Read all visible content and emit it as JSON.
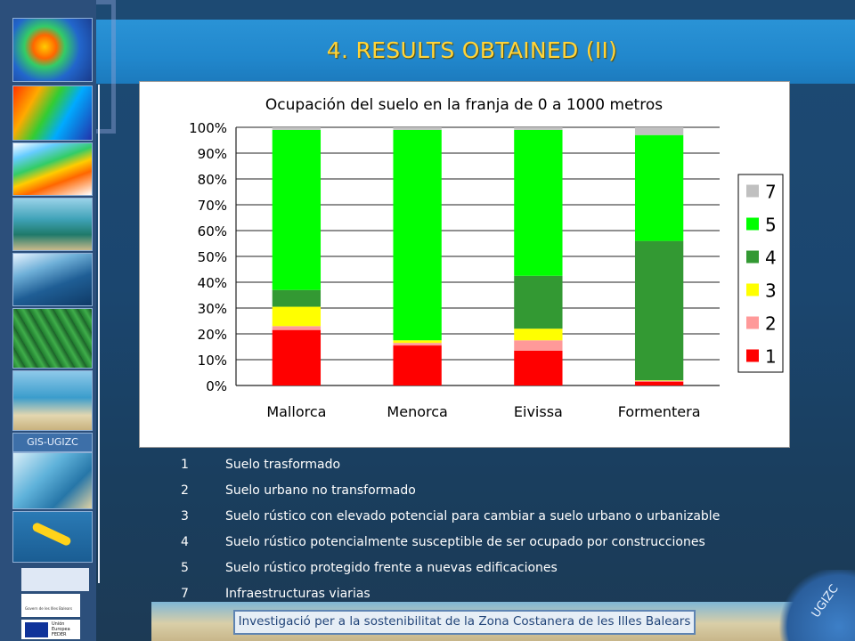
{
  "title": "4. RESULTS OBTAINED (II)",
  "chart_data": {
    "type": "bar",
    "stacked": true,
    "title": "Ocupación del suelo en la franja de 0 a 1000 metros",
    "categories": [
      "Mallorca",
      "Menorca",
      "Eivissa",
      "Formentera"
    ],
    "yticks": [
      "100%",
      "90%",
      "80%",
      "70%",
      "60%",
      "50%",
      "40%",
      "30%",
      "20%",
      "10%",
      "0%"
    ],
    "ylim": [
      0,
      100
    ],
    "grid": true,
    "legend_position": "right",
    "series": [
      {
        "name": "1",
        "color": "#ff0000",
        "values": [
          21.5,
          15.5,
          13.5,
          1.5
        ]
      },
      {
        "name": "2",
        "color": "#ff9999",
        "values": [
          1.5,
          1.0,
          4.0,
          0.3
        ]
      },
      {
        "name": "3",
        "color": "#ffff00",
        "values": [
          7.5,
          1.0,
          4.5,
          0.2
        ]
      },
      {
        "name": "4",
        "color": "#339933",
        "values": [
          6.5,
          0.0,
          20.5,
          54.0
        ]
      },
      {
        "name": "5",
        "color": "#00ff00",
        "values": [
          62.0,
          81.5,
          56.5,
          41.0
        ]
      },
      {
        "name": "7",
        "color": "#c0c0c0",
        "values": [
          1.0,
          1.0,
          1.0,
          3.0
        ]
      }
    ]
  },
  "legend_items": [
    {
      "num": "1",
      "text": "Suelo trasformado"
    },
    {
      "num": "2",
      "text": "Suelo urbano no transformado"
    },
    {
      "num": "3",
      "text": "Suelo rústico con elevado potencial para cambiar a suelo urbano o urbanizable"
    },
    {
      "num": "4",
      "text": "Suelo rústico potencialmente susceptible de ser ocupado por construcciones"
    },
    {
      "num": "5",
      "text": "Suelo rústico protegido frente a nuevas edificaciones"
    },
    {
      "num": "7",
      "text": "Infraestructuras viarias"
    }
  ],
  "footer": "Investigació per a la sostenibilitat de la Zona Costanera de les Illes Balears",
  "sidebar": {
    "gis_label": "GIS-UGIZC"
  },
  "logos": {
    "gov": "Govern de les Illes Balears",
    "eu": "Unión Europea FEDER",
    "corner": "UGIZC"
  }
}
